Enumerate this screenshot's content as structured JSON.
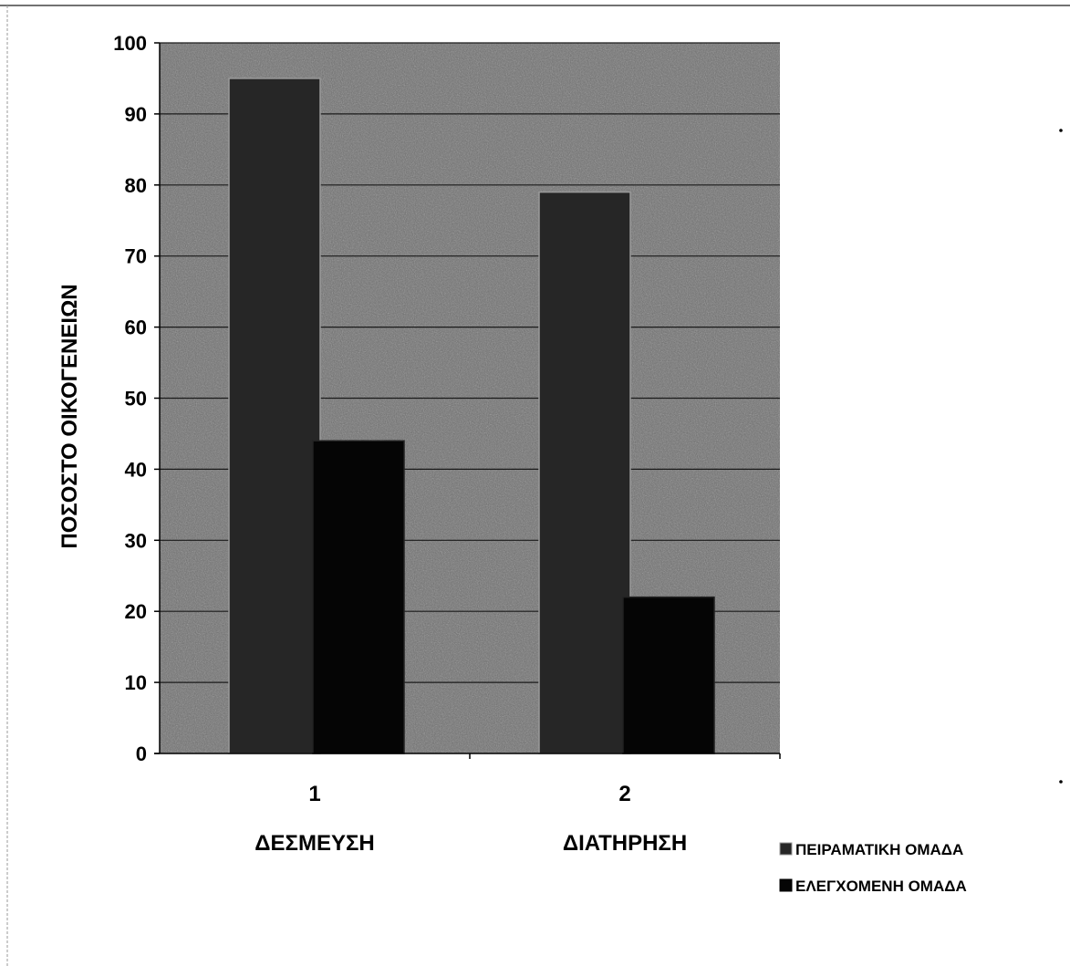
{
  "chart_data": {
    "type": "bar",
    "categories": [
      "1",
      "2"
    ],
    "category_labels": [
      "ΔΕΣΜΕΥΣΗ",
      "ΔΙΑΤΗΡΗΣΗ"
    ],
    "series": [
      {
        "name": "ΠΕΙΡΑΜΑΤΙΚΗ ΟΜΑΔΑ",
        "values": [
          95,
          79
        ],
        "color": "#262626"
      },
      {
        "name": "ΕΛΕΓΧΟΜΕΝΗ ΟΜΑΔΑ",
        "values": [
          44,
          22
        ],
        "color": "#050505"
      }
    ],
    "title": "",
    "xlabel": "",
    "ylabel": "ΠΟΣΟΣΤΟ ΟΙΚΟΓΕΝΕΙΩΝ",
    "ylim": [
      0,
      100
    ],
    "yticks": [
      0,
      10,
      20,
      30,
      40,
      50,
      60,
      70,
      80,
      90,
      100
    ],
    "grid": true,
    "legend_position": "bottom-right",
    "plot_background": "#6e6e6e"
  }
}
